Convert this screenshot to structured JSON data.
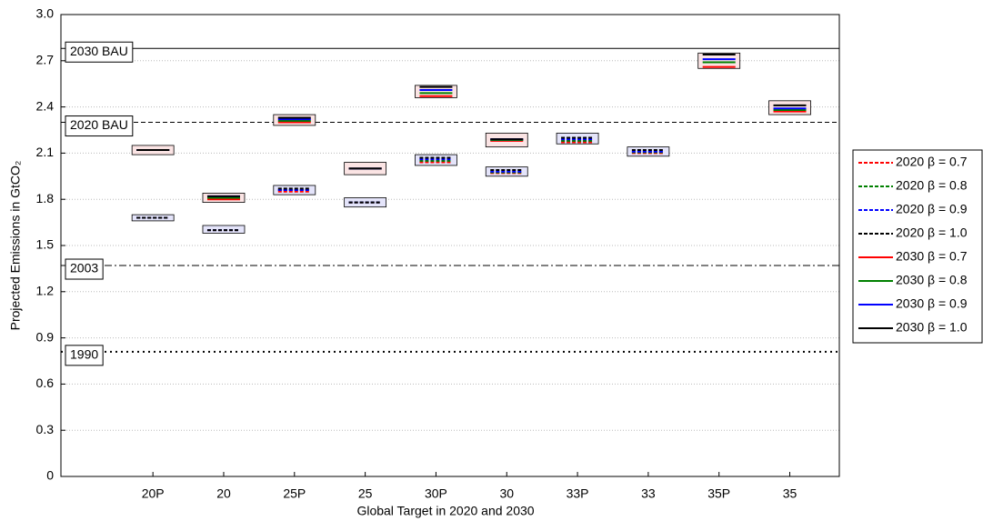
{
  "chart_data": {
    "type": "range-line",
    "x_label": "Global Target in 2020 and 2030",
    "y_label": "Projected Emissions in GtCO₂",
    "categories": [
      "20P",
      "20",
      "25P",
      "25",
      "30P",
      "30",
      "33P",
      "33",
      "35P",
      "35"
    ],
    "ylim": [
      0,
      3
    ],
    "yticks": [
      0,
      0.3,
      0.6,
      0.9,
      1.2,
      1.5,
      1.8,
      2.1,
      2.4,
      2.7,
      {
        "value": 3,
        "label": "3.0"
      }
    ],
    "grid": true,
    "legend": "right",
    "reference_lines": [
      {
        "label": "2030 BAU",
        "value": 2.78,
        "style": "solid"
      },
      {
        "label": "2020 BAU",
        "value": 2.3,
        "style": "dashed"
      },
      {
        "label": "2003",
        "value": 1.37,
        "style": "dashdot"
      },
      {
        "label": "1990",
        "value": 0.81,
        "style": "dotted"
      }
    ],
    "boxes": [
      {
        "color": "#e4e4fa",
        "low": [
          1.66,
          1.58,
          1.83,
          1.75,
          2.02,
          1.95,
          2.16,
          2.08,
          null,
          null
        ],
        "high": [
          1.7,
          1.63,
          1.89,
          1.81,
          2.09,
          2.01,
          2.23,
          2.14,
          null,
          null
        ]
      },
      {
        "color": "#fbe4e4",
        "low": [
          2.09,
          1.78,
          2.28,
          1.96,
          2.46,
          2.14,
          null,
          null,
          2.65,
          2.35
        ],
        "high": [
          2.15,
          1.84,
          2.35,
          2.04,
          2.54,
          2.23,
          null,
          null,
          2.75,
          2.44
        ]
      }
    ],
    "series": [
      {
        "name": "2020 β = 0.7",
        "color": "#ff0000",
        "style": "dashed",
        "values": [
          1.68,
          1.6,
          1.85,
          1.78,
          2.04,
          1.97,
          2.17,
          2.1,
          null,
          null
        ]
      },
      {
        "name": "2020 β = 0.8",
        "color": "#008000",
        "style": "dashed",
        "values": [
          1.68,
          1.6,
          1.86,
          1.78,
          2.05,
          1.975,
          2.18,
          2.105,
          null,
          null
        ]
      },
      {
        "name": "2020 β = 0.9",
        "color": "#0000ff",
        "style": "dashed",
        "values": [
          1.68,
          1.6,
          1.86,
          1.78,
          2.06,
          1.98,
          2.19,
          2.11,
          null,
          null
        ]
      },
      {
        "name": "2020 β = 1.0",
        "color": "#000000",
        "style": "dashed",
        "values": [
          1.68,
          1.6,
          1.87,
          1.78,
          2.07,
          1.99,
          2.2,
          2.12,
          null,
          null
        ]
      },
      {
        "name": "2030 β = 0.7",
        "color": "#ff0000",
        "style": "solid",
        "values": [
          2.12,
          1.8,
          2.3,
          2.0,
          2.47,
          2.18,
          null,
          null,
          2.66,
          2.37
        ]
      },
      {
        "name": "2030 β = 0.8",
        "color": "#008000",
        "style": "solid",
        "values": [
          2.12,
          1.81,
          2.31,
          2.0,
          2.49,
          2.185,
          null,
          null,
          2.69,
          2.38
        ]
      },
      {
        "name": "2030 β = 0.9",
        "color": "#0000ff",
        "style": "solid",
        "values": [
          2.12,
          1.82,
          2.32,
          2.0,
          2.51,
          2.19,
          null,
          null,
          2.71,
          2.39
        ]
      },
      {
        "name": "2030 β = 1.0",
        "color": "#000000",
        "style": "solid",
        "values": [
          2.12,
          1.82,
          2.33,
          2.0,
          2.53,
          2.19,
          null,
          null,
          2.74,
          2.41
        ]
      }
    ]
  }
}
